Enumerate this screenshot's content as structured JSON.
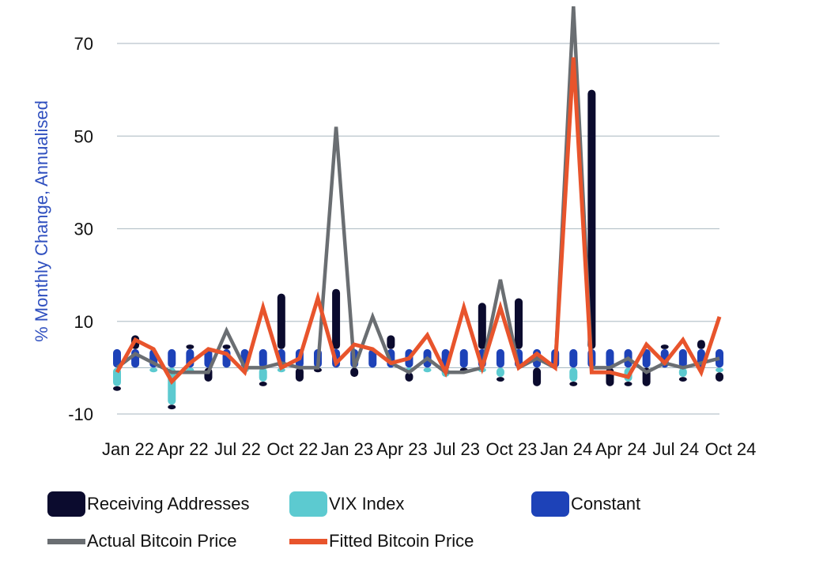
{
  "colors": {
    "receiving": "#0b0b2e",
    "vix": "#5ccad0",
    "constant": "#1d42b8",
    "actual": "#6a6e72",
    "fitted": "#e8542c",
    "grid": "#b9c4cc",
    "axis_title": "#2f4fbf"
  },
  "chart_data": {
    "type": "bar",
    "ylabel": "% Monthly Change, Annualised",
    "ylim": [
      -12,
      78
    ],
    "yticks": [
      "-10",
      "10",
      "30",
      "50",
      "70"
    ],
    "xtick_labels": [
      "Jan 22",
      "Apr 22",
      "Jul 22",
      "Oct 22",
      "Jan 23",
      "Apr 23",
      "Jul 23",
      "Oct 23",
      "Jan 24",
      "Apr 24",
      "Jul 24",
      "Oct 24"
    ],
    "x": [
      "Jan 22",
      "Feb 22",
      "Mar 22",
      "Apr 22",
      "May 22",
      "Jun 22",
      "Jul 22",
      "Aug 22",
      "Sep 22",
      "Oct 22",
      "Nov 22",
      "Dec 22",
      "Jan 23",
      "Feb 23",
      "Mar 23",
      "Apr 23",
      "May 23",
      "Jun 23",
      "Jul 23",
      "Aug 23",
      "Sep 23",
      "Oct 23",
      "Nov 23",
      "Dec 23",
      "Jan 24",
      "Feb 24",
      "Mar 24",
      "Apr 24",
      "May 24",
      "Jun 24",
      "Jul 24",
      "Aug 24",
      "Sep 24",
      "Oct 24"
    ],
    "legend": [
      "Receiving Addresses",
      "VIX Index",
      "Constant",
      "Actual Bitcoin Price",
      "Fitted Bitcoin Price"
    ],
    "series": [
      {
        "name": "Receiving Addresses",
        "kind": "bar",
        "values": [
          -1,
          3,
          0,
          -1,
          1,
          -3,
          1,
          0,
          -1,
          12,
          -3,
          -1,
          13,
          -2,
          0,
          3,
          -2,
          0,
          0,
          -1,
          10,
          -1,
          11,
          -4,
          0,
          -1,
          56,
          -4,
          -1,
          -4,
          1,
          -1,
          2,
          -2
        ]
      },
      {
        "name": "VIX Index",
        "kind": "bar",
        "values": [
          -4,
          0,
          -1,
          -8,
          -1,
          0,
          0,
          -1,
          -3,
          -1,
          0,
          0,
          0,
          0,
          0,
          0,
          -1,
          -1,
          -2,
          0,
          -1,
          -2,
          0,
          0,
          0,
          -3,
          0,
          0,
          -3,
          0,
          0,
          -2,
          0,
          -1
        ]
      },
      {
        "name": "Constant",
        "kind": "bar",
        "values": [
          4,
          4,
          4,
          4,
          4,
          4,
          4,
          4,
          4,
          4,
          4,
          4,
          4,
          4,
          4,
          4,
          4,
          4,
          4,
          4,
          4,
          4,
          4,
          4,
          4,
          4,
          4,
          4,
          4,
          4,
          4,
          4,
          4,
          4
        ]
      },
      {
        "name": "Actual Bitcoin Price",
        "kind": "line",
        "values": [
          0,
          3,
          1,
          -1,
          -1,
          -1,
          8,
          0,
          0,
          1,
          0,
          0,
          52,
          0,
          11,
          1,
          -1,
          2,
          -1,
          -1,
          0,
          19,
          0,
          2,
          0,
          78,
          0,
          0,
          2,
          -1,
          1,
          0,
          1,
          2
        ]
      },
      {
        "name": "Fitted Bitcoin Price",
        "kind": "line",
        "values": [
          -1,
          6,
          4,
          -3,
          1,
          4,
          3,
          -1,
          13,
          0,
          2,
          15,
          1,
          5,
          4,
          1,
          2,
          7,
          -1,
          13,
          0,
          13,
          0,
          3,
          0,
          67,
          -1,
          -1,
          -2,
          5,
          1,
          6,
          -1,
          11
        ]
      }
    ]
  }
}
